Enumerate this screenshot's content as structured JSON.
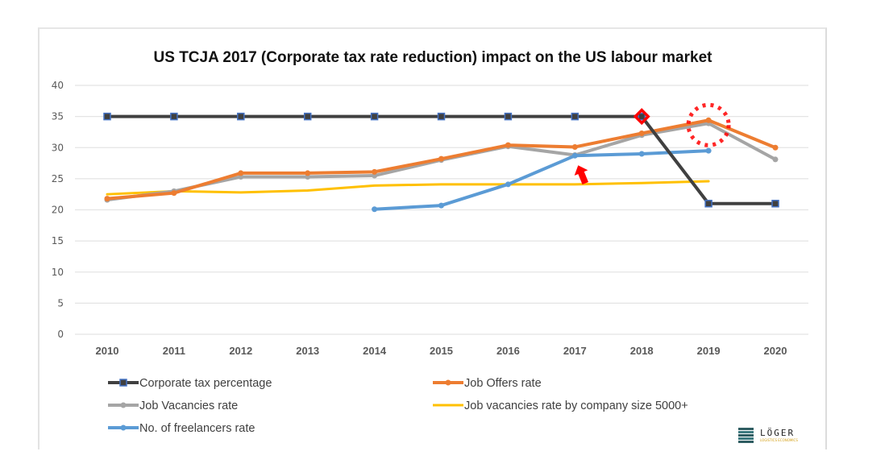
{
  "chart_data": {
    "type": "line",
    "title": "US TCJA 2017 (Corporate tax rate reduction) impact on the US labour market",
    "xlabel": "",
    "ylabel": "",
    "categories": [
      "2010",
      "2011",
      "2012",
      "2013",
      "2014",
      "2015",
      "2016",
      "2017",
      "2018",
      "2019",
      "2020"
    ],
    "ylim": [
      0,
      40
    ],
    "yticks": [
      "0",
      "5",
      "10",
      "15",
      "20",
      "25",
      "30",
      "35",
      "40"
    ],
    "grid": true,
    "legend_position": "bottom",
    "series": [
      {
        "name": "Corporate tax percentage",
        "color": "#404040",
        "marker": "square",
        "marker_color": "#4472c4",
        "values": [
          35,
          35,
          35,
          35,
          35,
          35,
          35,
          35,
          35,
          21,
          21
        ]
      },
      {
        "name": "Job Offers rate",
        "color": "#ed7d31",
        "marker": "dot",
        "values": [
          21.8,
          22.7,
          25.9,
          25.9,
          26.1,
          28.2,
          30.4,
          30.1,
          32.3,
          34.4,
          30.0
        ]
      },
      {
        "name": "Job Vacancies rate",
        "color": "#a5a5a5",
        "marker": "dot",
        "values": [
          21.6,
          23.0,
          25.3,
          25.3,
          25.5,
          28.0,
          30.2,
          28.8,
          32.0,
          33.9,
          28.1
        ]
      },
      {
        "name": "Job vacancies rate by company size 5000+",
        "color": "#ffc000",
        "marker": "none",
        "values": [
          22.5,
          23.0,
          22.8,
          23.1,
          23.9,
          24.1,
          24.1,
          24.1,
          24.3,
          24.6,
          null
        ]
      },
      {
        "name": "No. of freelancers rate",
        "color": "#5b9bd5",
        "marker": "dot",
        "values": [
          null,
          null,
          null,
          null,
          20.1,
          20.7,
          24.1,
          28.7,
          29.0,
          29.5,
          null
        ]
      }
    ],
    "annotations": [
      {
        "type": "diamond-highlight",
        "color": "#ff0000",
        "series": "Corporate tax percentage",
        "category": "2018",
        "value": 35
      },
      {
        "type": "dotted-circle",
        "color": "#ff0000",
        "series": "Job Offers rate",
        "category": "2019",
        "value": 34.4
      },
      {
        "type": "arrow",
        "color": "#ff0000",
        "direction": "up-left",
        "points_to": {
          "series": "No. of freelancers rate",
          "category": "2017",
          "value": 28.7
        }
      }
    ]
  },
  "logo": {
    "name": "LÖGER",
    "subtitle": "LOGISTICS ECONOMICS"
  }
}
